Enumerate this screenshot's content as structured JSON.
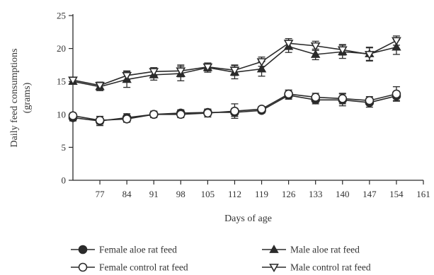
{
  "chart_data": {
    "type": "line",
    "title": "",
    "xlabel": "Days of age",
    "ylabel": "Daily feed consumptions",
    "ylabel_unit": "(grams)",
    "xlim": [
      70,
      161
    ],
    "ylim": [
      0,
      25
    ],
    "x_ticks": [
      77,
      84,
      91,
      98,
      105,
      112,
      119,
      126,
      133,
      140,
      147,
      154,
      161
    ],
    "y_ticks": [
      0,
      5,
      10,
      15,
      20,
      25
    ],
    "grid": false,
    "legend_position": "bottom",
    "x": [
      70,
      77,
      84,
      91,
      98,
      105,
      112,
      119,
      126,
      133,
      140,
      147,
      154
    ],
    "series": [
      {
        "name": "Female aloe rat feed",
        "marker": "circle-filled",
        "values": [
          9.5,
          9.0,
          9.5,
          10.0,
          10.2,
          10.3,
          10.3,
          10.6,
          12.9,
          12.2,
          12.2,
          11.8,
          12.8
        ],
        "errors": [
          0.5,
          0.7,
          0.6,
          0.5,
          0.5,
          0.5,
          0.6,
          0.4,
          0.6,
          0.6,
          0.9,
          0.7,
          0.7
        ]
      },
      {
        "name": "Female control rat feed",
        "marker": "circle-open",
        "values": [
          9.8,
          9.1,
          9.3,
          10.0,
          10.0,
          10.2,
          10.5,
          10.8,
          13.1,
          12.6,
          12.4,
          12.1,
          13.1
        ],
        "errors": [
          0.4,
          0.6,
          0.5,
          0.4,
          0.5,
          0.6,
          1.1,
          0.4,
          0.6,
          0.6,
          0.8,
          0.6,
          1.1
        ]
      },
      {
        "name": "Male aloe rat feed",
        "marker": "triangle-filled",
        "values": [
          15.0,
          14.2,
          15.3,
          16.0,
          16.2,
          17.1,
          16.4,
          16.9,
          20.3,
          19.1,
          19.5,
          19.2,
          20.2
        ],
        "errors": [
          0.4,
          0.6,
          1.2,
          0.8,
          1.1,
          0.7,
          1.0,
          1.1,
          0.9,
          0.8,
          1.0,
          1.0,
          1.1
        ]
      },
      {
        "name": "Male control rat feed",
        "marker": "triangle-open",
        "values": [
          15.2,
          14.4,
          15.9,
          16.5,
          16.6,
          17.2,
          16.7,
          18.0,
          20.8,
          20.4,
          19.8,
          19.1,
          21.2
        ],
        "errors": [
          0.4,
          0.5,
          0.7,
          0.6,
          0.9,
          0.6,
          0.8,
          0.7,
          0.7,
          0.7,
          0.8,
          1.0,
          0.7
        ]
      }
    ]
  }
}
